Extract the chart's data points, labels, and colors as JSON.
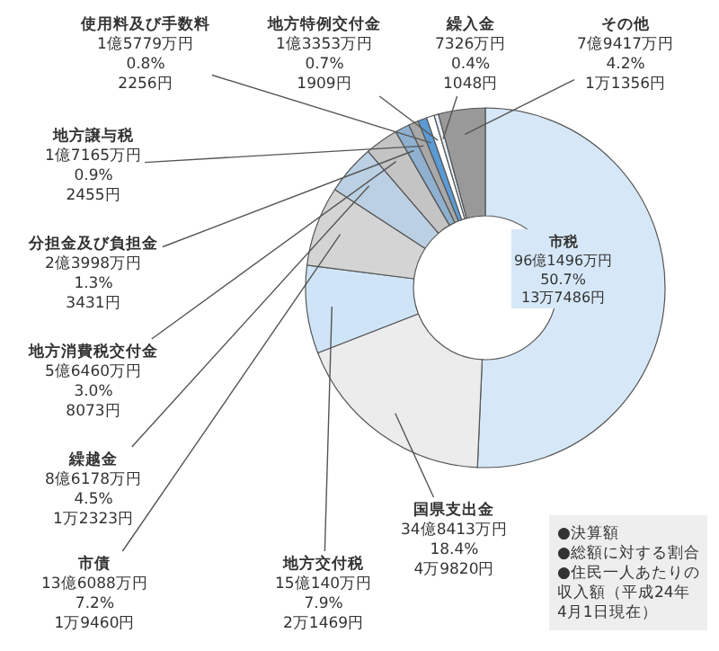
{
  "chart_data": {
    "type": "donut",
    "categories": [
      "市税",
      "国県支出金",
      "地方交付税",
      "市債",
      "繰越金",
      "地方消費税交付金",
      "分担金及び負担金",
      "地方譲与税",
      "使用料及び手数料",
      "地方特例交付金",
      "繰入金",
      "その他"
    ],
    "values": [
      50.7,
      18.4,
      7.9,
      7.2,
      4.5,
      3.0,
      1.3,
      0.9,
      0.8,
      0.7,
      0.4,
      4.2
    ],
    "colors": [
      "#d6e8f8",
      "#ececec",
      "#cfe4f7",
      "#d4d4d4",
      "#bcd0e3",
      "#c4c4c4",
      "#8fb0cf",
      "#a8a8a8",
      "#5b9bd5",
      "#ffffff",
      "#e4effa",
      "#999999"
    ],
    "value_labels": [
      "96億1496万円\n50.7%\n13万7486円",
      "34億8413万円\n18.4%\n4万9820円",
      "15億140万円\n7.9%\n2万1469円",
      "13億6088万円\n7.2%\n1万9460円",
      "8億6178万円\n4.5%\n1万2323円",
      "5億6460万円\n3.0%\n8073円",
      "2億3998万円\n1.3%\n3431円",
      "1億7165万円\n0.9%\n2455円",
      "1億5779万円\n0.8%\n2256円",
      "1億3353万円\n0.7%\n1909円",
      "7326万円\n0.4%\n1048円",
      "7億9417万円\n4.2%\n1万1356円"
    ],
    "annotations": [
      "●決算額",
      "●総額に対する割合",
      "●住民一人あたりの収入額（平成24年4月1日現在）"
    ]
  }
}
